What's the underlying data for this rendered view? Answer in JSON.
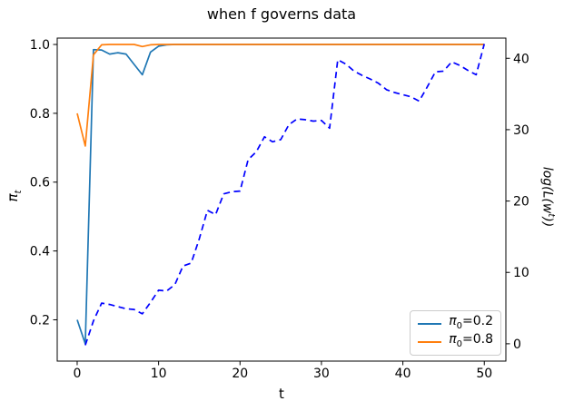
{
  "figure": {
    "title": "when f governs data",
    "xlabel": "t",
    "left_ylabel": {
      "base": "π",
      "sub": "t"
    },
    "right_ylabel": {
      "pre": "log(L(w",
      "sup": "t",
      "post": "))"
    },
    "legend": {
      "position": "lower right",
      "items": [
        {
          "base": "π",
          "sub": "0",
          "rest": "=0.2",
          "color": "#1f77b4"
        },
        {
          "base": "π",
          "sub": "0",
          "rest": "=0.8",
          "color": "#ff7f0e"
        }
      ]
    }
  },
  "chart_data": {
    "type": "line",
    "title": "when f governs data",
    "xlabel": "t",
    "left_ylabel": "pi_t",
    "right_ylabel": "log(L(w^t))",
    "grid": false,
    "background": "#ffffff",
    "legend_position": "lower right",
    "xlim": [
      -2.45,
      52.65
    ],
    "left_ylim": [
      0.08,
      1.0185
    ],
    "right_ylim": [
      -2.43,
      42.83
    ],
    "xticks": [
      0,
      10,
      20,
      30,
      40,
      50
    ],
    "xtick_labels": [
      "0",
      "10",
      "20",
      "30",
      "40",
      "50"
    ],
    "left_yticks": [
      0.2,
      0.4,
      0.6,
      0.8,
      1.0
    ],
    "left_ytick_labels": [
      "0.2",
      "0.4",
      "0.6",
      "0.8",
      "1.0"
    ],
    "right_yticks": [
      0,
      10,
      20,
      30,
      40
    ],
    "right_ytick_labels": [
      "0",
      "10",
      "20",
      "30",
      "40"
    ],
    "series": [
      {
        "name": "pi0=0.2",
        "axis": "left",
        "style": "solid",
        "color": "#1f77b4",
        "x": [
          0,
          1,
          2,
          3,
          4,
          5,
          6,
          7,
          8,
          9,
          10,
          11,
          12,
          13,
          14,
          15,
          16,
          17,
          18,
          19,
          20,
          21,
          22,
          23,
          24,
          25,
          26,
          27,
          28,
          29,
          30,
          31,
          32,
          33,
          34,
          35,
          36,
          37,
          38,
          39,
          40,
          41,
          42,
          43,
          44,
          45,
          46,
          47,
          48,
          49,
          50
        ],
        "y": [
          0.2,
          0.13,
          0.985,
          0.984,
          0.972,
          0.976,
          0.972,
          0.942,
          0.912,
          0.978,
          0.995,
          0.999,
          1.0,
          1.0,
          1.0,
          1.0,
          1.0,
          1.0,
          1.0,
          1.0,
          1.0,
          1.0,
          1.0,
          1.0,
          1.0,
          1.0,
          1.0,
          1.0,
          1.0,
          1.0,
          1.0,
          1.0,
          1.0,
          1.0,
          1.0,
          1.0,
          1.0,
          1.0,
          1.0,
          1.0,
          1.0,
          1.0,
          1.0,
          1.0,
          1.0,
          1.0,
          1.0,
          1.0,
          1.0,
          1.0,
          1.0
        ]
      },
      {
        "name": "pi0=0.8",
        "axis": "left",
        "style": "solid",
        "color": "#ff7f0e",
        "x": [
          0,
          1,
          2,
          3,
          4,
          5,
          6,
          7,
          8,
          9,
          10,
          11,
          12,
          13,
          14,
          15,
          16,
          17,
          18,
          19,
          20,
          21,
          22,
          23,
          24,
          25,
          26,
          27,
          28,
          29,
          30,
          31,
          32,
          33,
          34,
          35,
          36,
          37,
          38,
          39,
          40,
          41,
          42,
          43,
          44,
          45,
          46,
          47,
          48,
          49,
          50
        ],
        "y": [
          0.8,
          0.705,
          0.97,
          0.999,
          1.0,
          1.0,
          1.0,
          1.0,
          0.994,
          0.999,
          1.0,
          1.0,
          1.0,
          1.0,
          1.0,
          1.0,
          1.0,
          1.0,
          1.0,
          1.0,
          1.0,
          1.0,
          1.0,
          1.0,
          1.0,
          1.0,
          1.0,
          1.0,
          1.0,
          1.0,
          1.0,
          1.0,
          1.0,
          1.0,
          1.0,
          1.0,
          1.0,
          1.0,
          1.0,
          1.0,
          1.0,
          1.0,
          1.0,
          1.0,
          1.0,
          1.0,
          1.0,
          1.0,
          1.0,
          1.0,
          1.0
        ]
      },
      {
        "name": "log(L(w^t))",
        "axis": "right",
        "style": "dashed",
        "color": "#0000ff",
        "x": [
          1,
          2,
          3,
          4,
          5,
          6,
          7,
          8,
          9,
          10,
          11,
          12,
          13,
          14,
          15,
          16,
          17,
          18,
          19,
          20,
          21,
          22,
          23,
          24,
          25,
          26,
          27,
          28,
          29,
          30,
          31,
          32,
          33,
          34,
          35,
          36,
          37,
          38,
          39,
          40,
          41,
          42,
          43,
          44,
          45,
          46,
          47,
          48,
          49,
          50
        ],
        "y": [
          -0.2,
          3.2,
          5.7,
          5.5,
          5.2,
          4.9,
          4.8,
          4.2,
          5.8,
          7.5,
          7.4,
          8.3,
          10.9,
          11.3,
          14.7,
          18.7,
          18.1,
          21.0,
          21.3,
          21.4,
          25.8,
          26.9,
          29.0,
          28.3,
          28.6,
          30.7,
          31.5,
          31.4,
          31.2,
          31.3,
          30.2,
          39.8,
          39.2,
          38.2,
          37.6,
          37.1,
          36.5,
          35.6,
          35.2,
          34.9,
          34.6,
          34.0,
          36.0,
          38.1,
          38.2,
          39.5,
          39.0,
          38.3,
          37.7,
          42.0
        ]
      }
    ]
  }
}
